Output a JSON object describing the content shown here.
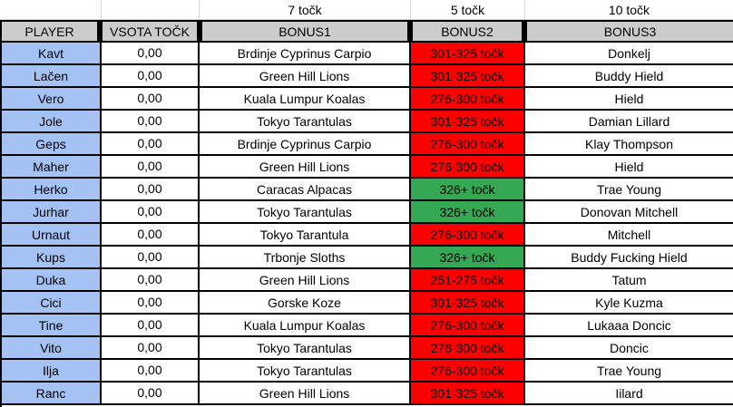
{
  "points_row": {
    "bonus1": "7 točk",
    "bonus2": "5 točk",
    "bonus3": "10 točk"
  },
  "header": {
    "player": "PLAYER",
    "total": "VSOTA TOČK",
    "bonus1": "BONUS1",
    "bonus2": "BONUS2",
    "bonus3": "BONUS3"
  },
  "colors": {
    "player_bg": "#a4c2f4",
    "header_bg": "#cccccc",
    "red": "#ff0000",
    "green": "#34a853"
  },
  "rows": [
    {
      "player": "Kavt",
      "total": "0,00",
      "bonus1": "Brdinje Cyprinus Carpio",
      "bonus2": "301-325 točk",
      "bonus2_color": "red",
      "bonus3": "Donkelj"
    },
    {
      "player": "Lačen",
      "total": "0,00",
      "bonus1": "Green Hill Lions",
      "bonus2": "301-325 točk",
      "bonus2_color": "red",
      "bonus3": "Buddy Hield"
    },
    {
      "player": "Vero",
      "total": "0,00",
      "bonus1": "Kuala Lumpur Koalas",
      "bonus2": "276-300 točk",
      "bonus2_color": "red",
      "bonus3": "Hield"
    },
    {
      "player": "Jole",
      "total": "0,00",
      "bonus1": "Tokyo Tarantulas",
      "bonus2": "301-325 točk",
      "bonus2_color": "red",
      "bonus3": "Damian Lillard"
    },
    {
      "player": "Geps",
      "total": "0,00",
      "bonus1": "Brdinje Cyprinus Carpio",
      "bonus2": "276-300 točk",
      "bonus2_color": "red",
      "bonus3": "Klay Thompson"
    },
    {
      "player": "Maher",
      "total": "0,00",
      "bonus1": "Green Hill Lions",
      "bonus2": "276-300 točk",
      "bonus2_color": "red",
      "bonus3": "Hield"
    },
    {
      "player": "Herko",
      "total": "0,00",
      "bonus1": "Caracas Alpacas",
      "bonus2": "326+ točk",
      "bonus2_color": "green",
      "bonus3": "Trae Young"
    },
    {
      "player": "Jurhar",
      "total": "0,00",
      "bonus1": "Tokyo Tarantulas",
      "bonus2": "326+ točk",
      "bonus2_color": "green",
      "bonus3": "Donovan Mitchell"
    },
    {
      "player": "Urnaut",
      "total": "0,00",
      "bonus1": "Tokyo Tarantula",
      "bonus2": "276-300 točk",
      "bonus2_color": "red",
      "bonus3": "Mitchell"
    },
    {
      "player": "Kups",
      "total": "0,00",
      "bonus1": "Trbonje Sloths",
      "bonus2": "326+ točk",
      "bonus2_color": "green",
      "bonus3": "Buddy Fucking Hield"
    },
    {
      "player": "Duka",
      "total": "0,00",
      "bonus1": "Green Hill Lions",
      "bonus2": "251-275 točk",
      "bonus2_color": "red",
      "bonus3": "Tatum"
    },
    {
      "player": "Cici",
      "total": "0,00",
      "bonus1": "Gorske Koze",
      "bonus2": "301-325 točk",
      "bonus2_color": "red",
      "bonus3": "Kyle Kuzma"
    },
    {
      "player": "Tine",
      "total": "0,00",
      "bonus1": "Kuala Lumpur Koalas",
      "bonus2": "276-300 točk",
      "bonus2_color": "red",
      "bonus3": "Lukaaa Doncic"
    },
    {
      "player": "Vito",
      "total": "0,00",
      "bonus1": "Tokyo Tarantulas",
      "bonus2": "276-300 točk",
      "bonus2_color": "red",
      "bonus3": "Doncic"
    },
    {
      "player": "Ilja",
      "total": "0,00",
      "bonus1": "Tokyo Tarantulas",
      "bonus2": "276-300 točk",
      "bonus2_color": "red",
      "bonus3": "Trae Young"
    },
    {
      "player": "Ranc",
      "total": "0,00",
      "bonus1": "Green Hill Lions",
      "bonus2": "301-325 točk",
      "bonus2_color": "red",
      "bonus3": "Iilard"
    }
  ]
}
